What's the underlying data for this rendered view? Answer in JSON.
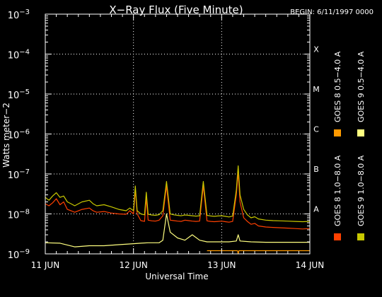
{
  "chart_data": {
    "type": "line",
    "title": "X−Ray Flux (Five Minute)",
    "begin_label": "BEGIN: 6/11/1997 0000",
    "xlabel": "Universal Time",
    "ylabel": "Watts meter−2",
    "x_unit": "hours since 1997-06-11 00:00 UT",
    "xlim": [
      0,
      72
    ],
    "x_ticks": [
      {
        "value": 0,
        "label": "11 JUN"
      },
      {
        "value": 24,
        "label": "12 JUN"
      },
      {
        "value": 48,
        "label": "13 JUN"
      },
      {
        "value": 72,
        "label": "14 JUN"
      }
    ],
    "y_scale": "log",
    "ylim": [
      1e-09,
      0.001
    ],
    "y_ticks": [
      {
        "exp": -9,
        "value": 1e-09
      },
      {
        "exp": -8,
        "value": 1e-08
      },
      {
        "exp": -7,
        "value": 1e-07
      },
      {
        "exp": -6,
        "value": 1e-06
      },
      {
        "exp": -5,
        "value": 1e-05
      },
      {
        "exp": -4,
        "value": 0.0001
      },
      {
        "exp": -3,
        "value": 0.001
      }
    ],
    "y_tick_base": "10",
    "flare_classes": [
      {
        "label": "A",
        "value": 1e-08
      },
      {
        "label": "B",
        "value": 1e-07
      },
      {
        "label": "C",
        "value": 1e-06
      },
      {
        "label": "M",
        "value": 1e-05
      },
      {
        "label": "X",
        "value": 0.0001
      }
    ],
    "grid": "dotted at flare-class levels and day boundaries",
    "legend_position": "right",
    "series": [
      {
        "name": "GOES 8 1.0−8.0 A",
        "color": "#ff4000",
        "x": [
          0,
          1,
          2,
          3,
          4,
          5,
          6,
          7,
          8,
          10,
          12,
          13,
          14,
          16,
          18,
          20,
          22,
          23,
          24,
          24.5,
          25,
          26,
          27,
          27.5,
          28,
          29,
          30,
          31,
          32,
          33,
          34,
          35,
          36,
          37,
          38,
          39,
          40,
          41,
          42,
          43,
          44,
          45,
          46,
          47,
          48,
          49,
          50,
          51,
          52,
          52.5,
          53,
          54,
          55,
          56,
          57,
          58,
          60,
          62,
          64,
          66,
          68,
          70,
          72
        ],
        "y": [
          1.8e-08,
          1.6e-08,
          1.9e-08,
          2.4e-08,
          1.7e-08,
          2e-08,
          1.3e-08,
          1.2e-08,
          1.1e-08,
          1.3e-08,
          1.4e-08,
          1.2e-08,
          1.1e-08,
          1.15e-08,
          1.05e-08,
          1e-08,
          9.8e-09,
          1.2e-08,
          1e-08,
          4e-08,
          1e-08,
          6.8e-09,
          6.5e-09,
          2.5e-08,
          7e-09,
          6.7e-09,
          6.6e-09,
          7e-09,
          9e-09,
          5e-08,
          7e-09,
          6.8e-09,
          6.6e-09,
          6.5e-09,
          7e-09,
          6.8e-09,
          6.6e-09,
          6.5e-09,
          6.6e-09,
          5e-08,
          6.7e-09,
          6.5e-09,
          6.4e-09,
          6.5e-09,
          6.6e-09,
          6.4e-09,
          6.2e-09,
          6.5e-09,
          3e-08,
          1.1e-07,
          2e-08,
          8e-09,
          6.5e-09,
          5.5e-09,
          5.8e-09,
          5e-09,
          4.7e-09,
          4.6e-09,
          4.5e-09,
          4.4e-09,
          4.3e-09,
          4.2e-09,
          4.3e-09
        ]
      },
      {
        "name": "GOES 8 0.5−4.0 A",
        "color": "#ff9a00",
        "x": [
          44,
          52,
          52.3,
          52.5,
          52.7,
          53,
          72
        ],
        "y": [
          1.2e-09,
          1.2e-09,
          1.2e-09,
          1e-09,
          1.2e-09,
          1.2e-09,
          1.2e-09
        ]
      },
      {
        "name": "GOES 9 1.0−8.0 A",
        "color": "#c8c800",
        "x": [
          0,
          1,
          2,
          3,
          4,
          5,
          6,
          7,
          8,
          10,
          12,
          13,
          14,
          16,
          18,
          20,
          22,
          23,
          24,
          24.5,
          25,
          26,
          27,
          27.5,
          28,
          29,
          30,
          31,
          32,
          33,
          34,
          35,
          36,
          37,
          38,
          39,
          40,
          41,
          42,
          43,
          44,
          45,
          46,
          47,
          48,
          49,
          50,
          51,
          52,
          52.5,
          53,
          54,
          55,
          56,
          57,
          58,
          60,
          62,
          64,
          66,
          68,
          70,
          72
        ],
        "y": [
          2.6e-08,
          2.2e-08,
          2.8e-08,
          3.4e-08,
          2.6e-08,
          2.8e-08,
          2e-08,
          1.8e-08,
          1.6e-08,
          2e-08,
          2.2e-08,
          1.8e-08,
          1.6e-08,
          1.7e-08,
          1.5e-08,
          1.3e-08,
          1.2e-08,
          1.4e-08,
          1.2e-08,
          5e-08,
          1.2e-08,
          1e-08,
          9.5e-09,
          3.5e-08,
          9.8e-09,
          9.4e-09,
          9.2e-09,
          9.6e-09,
          1.2e-08,
          6.5e-08,
          1e-08,
          9.5e-09,
          9.2e-09,
          9e-09,
          9.4e-09,
          9.2e-09,
          9e-09,
          8.8e-09,
          9e-09,
          6.5e-08,
          9.2e-09,
          8.9e-09,
          8.7e-09,
          8.9e-09,
          9e-09,
          8.7e-09,
          8.4e-09,
          8.8e-09,
          4e-08,
          1.6e-07,
          3e-08,
          1.3e-08,
          9.5e-09,
          8e-09,
          8.5e-09,
          7.5e-09,
          7e-09,
          6.8e-09,
          6.7e-09,
          6.6e-09,
          6.5e-09,
          6.4e-09,
          6.5e-09
        ]
      },
      {
        "name": "GOES 9 0.5−4.0 A",
        "color": "#ffff80",
        "x": [
          0,
          4,
          8,
          12,
          16,
          20,
          24,
          26,
          28,
          30,
          31,
          32,
          33,
          34,
          36,
          38,
          40,
          42,
          44,
          46,
          48,
          50,
          52,
          52.5,
          53,
          56,
          60,
          64,
          68,
          72
        ],
        "y": [
          1.9e-09,
          1.85e-09,
          1.5e-09,
          1.6e-09,
          1.6e-09,
          1.7e-09,
          1.8e-09,
          1.85e-09,
          1.9e-09,
          1.9e-09,
          1.9e-09,
          2.2e-09,
          1e-08,
          3.5e-09,
          2.5e-09,
          2.2e-09,
          3e-09,
          2.2e-09,
          2e-09,
          2e-09,
          2e-09,
          2e-09,
          2.1e-09,
          3e-09,
          2.1e-09,
          2e-09,
          1.95e-09,
          1.95e-09,
          1.95e-09,
          1.95e-09
        ]
      }
    ]
  }
}
